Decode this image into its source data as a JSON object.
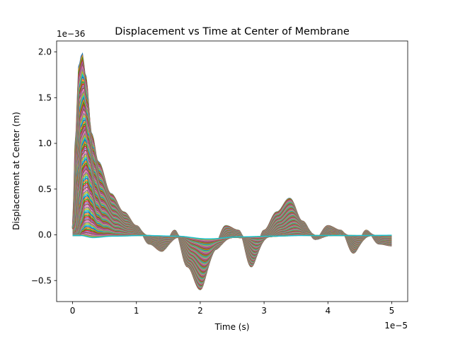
{
  "chart_data": {
    "type": "line",
    "title": "Displacement vs Time at Center of Membrane",
    "xlabel": "Time (s)",
    "ylabel": "Displacement at Center (m)",
    "x_offset_text": "1e−5",
    "y_offset_text": "1e−36",
    "xlim": [
      -0.25,
      5.25
    ],
    "ylim": [
      -0.73,
      2.12
    ],
    "x_ticks": [
      0,
      1,
      2,
      3,
      4,
      5
    ],
    "x_tick_labels": [
      "0",
      "1",
      "2",
      "3",
      "4",
      "5"
    ],
    "y_ticks": [
      -0.5,
      0.0,
      0.5,
      1.0,
      1.5,
      2.0
    ],
    "y_tick_labels": [
      "−0.5",
      "0.0",
      "0.5",
      "1.0",
      "1.5",
      "2.0"
    ],
    "grid": false,
    "legend": "none",
    "series_count": 100,
    "series_colors": [
      "#1f77b4",
      "#ff7f0e",
      "#2ca02c",
      "#d62728",
      "#9467bd",
      "#8c564b",
      "#e377c2",
      "#7f7f7f",
      "#bcbd22",
      "#17becf"
    ],
    "outer_envelope": {
      "x": [
        0.0,
        0.05,
        0.1,
        0.15,
        0.2,
        0.3,
        0.4,
        0.6,
        0.8,
        1.0,
        1.2,
        1.4,
        1.6,
        1.8,
        2.0,
        2.2,
        2.4,
        2.6,
        2.8,
        3.0,
        3.2,
        3.4,
        3.6,
        3.8,
        4.0,
        4.2,
        4.4,
        4.6,
        4.8,
        5.0
      ],
      "y": [
        0.08,
        1.1,
        1.85,
        1.98,
        1.75,
        1.1,
        0.8,
        0.45,
        0.25,
        0.1,
        -0.1,
        -0.18,
        0.05,
        -0.35,
        -0.6,
        -0.15,
        0.1,
        0.05,
        -0.35,
        0.05,
        0.25,
        0.4,
        0.15,
        -0.05,
        0.1,
        0.05,
        -0.2,
        0.05,
        -0.1,
        -0.12
      ]
    },
    "inner_envelope": {
      "x": [
        0.0,
        0.2,
        0.5,
        1.0,
        1.5,
        2.0,
        2.5,
        3.0,
        3.5,
        4.0,
        4.5,
        5.0
      ],
      "y": [
        -0.05,
        -0.2,
        -0.1,
        -0.05,
        -0.1,
        -0.3,
        -0.15,
        -0.1,
        -0.05,
        -0.05,
        -0.05,
        -0.03
      ]
    }
  }
}
